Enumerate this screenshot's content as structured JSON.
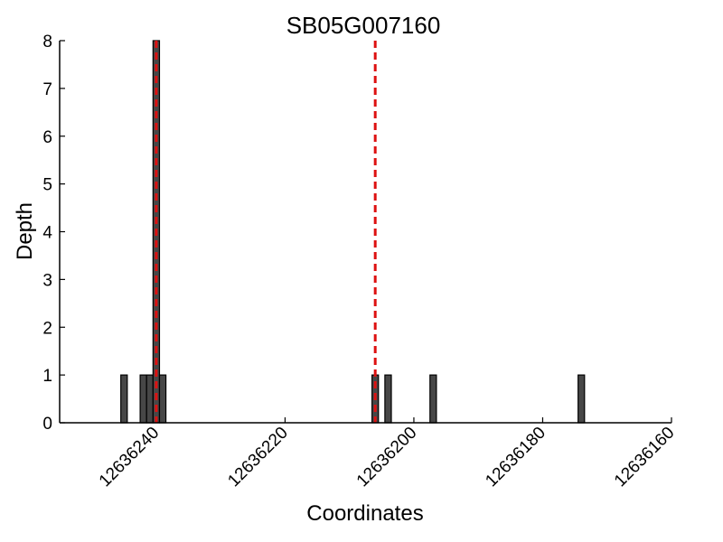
{
  "chart_data": {
    "type": "bar",
    "title": "SB05G007160",
    "xlabel": "Coordinates",
    "ylabel": "Depth",
    "xlim": [
      12636255,
      12636160
    ],
    "ylim": [
      0,
      8
    ],
    "x_ticks": [
      12636240,
      12636220,
      12636200,
      12636180,
      12636160
    ],
    "y_ticks": [
      0,
      1,
      2,
      3,
      4,
      5,
      6,
      7,
      8
    ],
    "bin_width": 1,
    "x": [
      12636245,
      12636242,
      12636241,
      12636240,
      12636239,
      12636206,
      12636204,
      12636197,
      12636174
    ],
    "values": [
      1,
      1,
      1,
      8,
      1,
      1,
      1,
      1,
      1
    ],
    "marker_lines": [
      12636240,
      12636206
    ],
    "colors": {
      "bar": "#474747",
      "marker": "#dd1111"
    },
    "grid": false,
    "legend": "none"
  }
}
